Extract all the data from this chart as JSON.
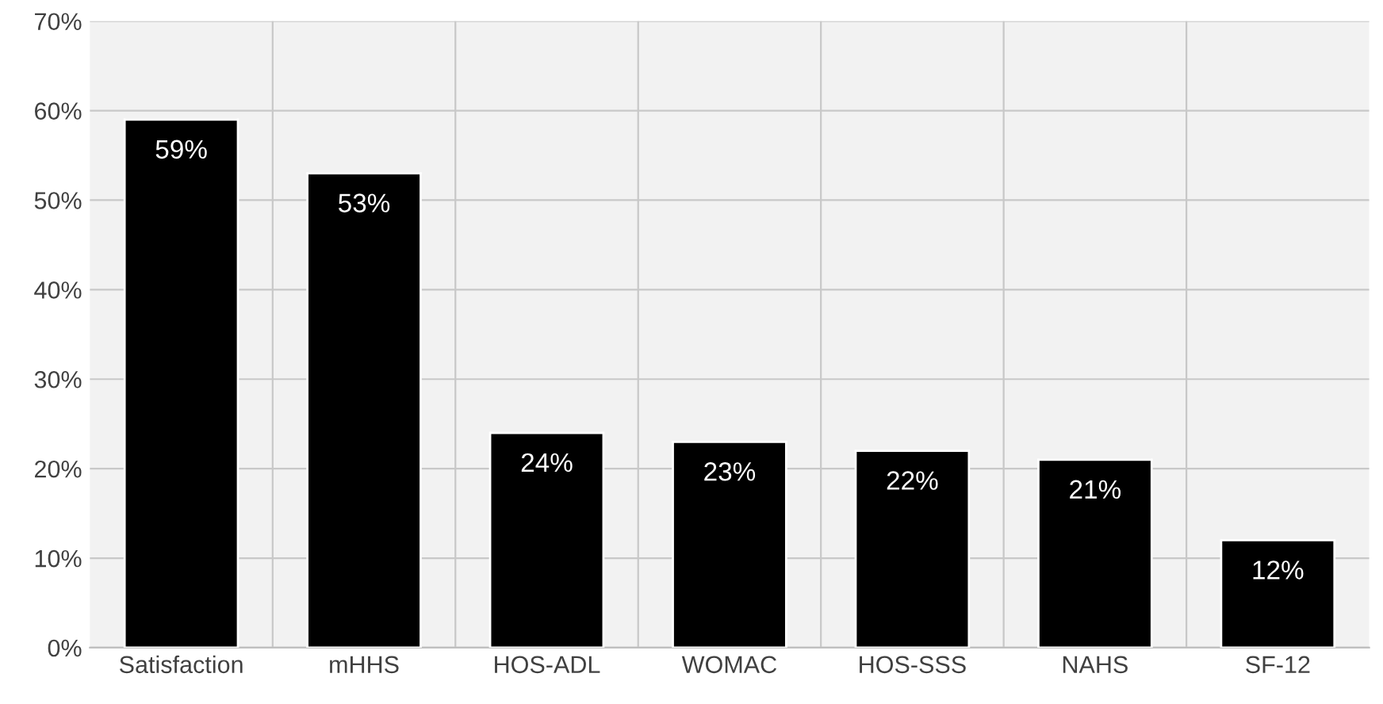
{
  "chart_data": {
    "type": "bar",
    "categories": [
      "Satisfaction",
      "mHHS",
      "HOS-ADL",
      "WOMAC",
      "HOS-SSS",
      "NAHS",
      "SF-12"
    ],
    "values": [
      59,
      53,
      24,
      23,
      22,
      21,
      12
    ],
    "value_labels": [
      "59%",
      "53%",
      "24%",
      "23%",
      "22%",
      "21%",
      "12%"
    ],
    "color": "#000000",
    "ylim": [
      0,
      70
    ],
    "yticks": [
      {
        "value": 0,
        "label": "0%"
      },
      {
        "value": 10,
        "label": "10%"
      },
      {
        "value": 20,
        "label": "20%"
      },
      {
        "value": 30,
        "label": "30%"
      },
      {
        "value": 40,
        "label": "40%"
      },
      {
        "value": 50,
        "label": "50%"
      },
      {
        "value": 60,
        "label": "60%"
      },
      {
        "value": 70,
        "label": "70%"
      }
    ],
    "grid": true
  }
}
